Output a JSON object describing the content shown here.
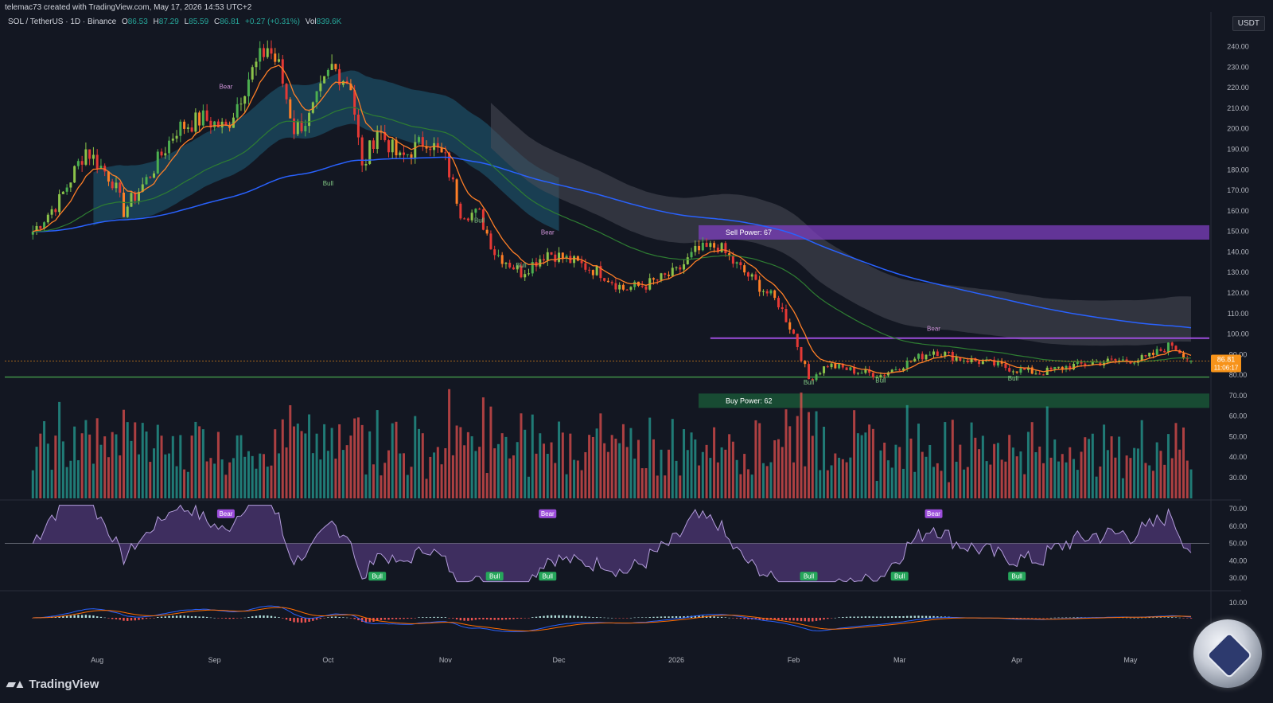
{
  "header": {
    "credit": "telemac73 created with TradingView.com, May 17, 2026 14:53 UTC+2"
  },
  "symbol": {
    "pair": "SOL / TetherUS · 1D · Binance",
    "o_label": "O",
    "o": "86.53",
    "h_label": "H",
    "h": "87.29",
    "l_label": "L",
    "l": "85.59",
    "c_label": "C",
    "c": "86.81",
    "change": "+0.27 (+0.31%)",
    "vol_label": "Vol",
    "vol": "839.6K"
  },
  "currency": "USDT",
  "price_axis": {
    "labels": [
      "240.00",
      "230.00",
      "220.00",
      "210.00",
      "200.00",
      "190.00",
      "180.00",
      "170.00",
      "160.00",
      "150.00",
      "140.00",
      "130.00",
      "120.00",
      "110.00",
      "100.00",
      "90.00",
      "80.00",
      "70.00",
      "60.00",
      "50.00",
      "40.00",
      "30.00"
    ],
    "current_price": "86.81",
    "countdown": "11:06:17"
  },
  "rsi_axis": {
    "labels": [
      "70.00",
      "60.00",
      "50.00",
      "40.00",
      "30.00"
    ]
  },
  "macd_axis": {
    "labels": [
      "10.00"
    ]
  },
  "time_axis": {
    "labels": [
      "Aug",
      "Sep",
      "Oct",
      "Nov",
      "Dec",
      "2026",
      "Feb",
      "Mar",
      "Apr",
      "May"
    ]
  },
  "zones": {
    "sell_power": "Sell Power: 67",
    "buy_power": "Buy Power: 62"
  },
  "divergence_labels": {
    "bear": "Bear",
    "bull": "Bull"
  },
  "branding": {
    "logo": "TradingView"
  },
  "colors": {
    "background": "#131722",
    "up": "#26a69a",
    "down": "#ef5350",
    "bright_up": "#4caf50",
    "bright_down": "#e53935",
    "orange_ma": "#ff7f27",
    "green_ma": "#2e7d32",
    "blue_ma": "#2962ff",
    "cloud_teal": "#1f5f7a",
    "cloud_gray": "#4a4d57",
    "sell_zone": "#7e3fbf",
    "buy_zone": "#1b5e3a",
    "price_badge": "#f7931a"
  },
  "chart_data": {
    "type": "candlestick",
    "title": "",
    "symbol": "SOL / TetherUS",
    "timeframe": "1D",
    "exchange": "Binance",
    "ylim": [
      20,
      250
    ],
    "last": {
      "open": 86.53,
      "high": 87.29,
      "low": 85.59,
      "close": 86.81,
      "change": 0.27,
      "change_pct": 0.31,
      "volume": "839.6K"
    },
    "close_path": {
      "months": [
        "Aug",
        "Sep",
        "Oct",
        "Nov",
        "Dec",
        "2026",
        "Feb",
        "Mar",
        "Apr",
        "May"
      ],
      "points": [
        [
          "2025-07-15",
          150
        ],
        [
          "2025-07-22",
          165
        ],
        [
          "2025-07-29",
          190
        ],
        [
          "2025-08-05",
          175
        ],
        [
          "2025-08-08",
          160
        ],
        [
          "2025-08-14",
          175
        ],
        [
          "2025-08-22",
          200
        ],
        [
          "2025-08-29",
          205
        ],
        [
          "2025-09-04",
          200
        ],
        [
          "2025-09-10",
          225
        ],
        [
          "2025-09-15",
          240
        ],
        [
          "2025-09-18",
          230
        ],
        [
          "2025-09-22",
          200
        ],
        [
          "2025-09-26",
          205
        ],
        [
          "2025-10-02",
          230
        ],
        [
          "2025-10-07",
          222
        ],
        [
          "2025-10-10",
          180
        ],
        [
          "2025-10-14",
          200
        ],
        [
          "2025-10-20",
          185
        ],
        [
          "2025-10-27",
          195
        ],
        [
          "2025-11-01",
          185
        ],
        [
          "2025-11-05",
          160
        ],
        [
          "2025-11-10",
          158
        ],
        [
          "2025-11-14",
          140
        ],
        [
          "2025-11-21",
          130
        ],
        [
          "2025-11-28",
          140
        ],
        [
          "2025-12-05",
          135
        ],
        [
          "2025-12-12",
          130
        ],
        [
          "2025-12-18",
          122
        ],
        [
          "2025-12-24",
          124
        ],
        [
          "2026-01-01",
          130
        ],
        [
          "2026-01-06",
          140
        ],
        [
          "2026-01-12",
          143
        ],
        [
          "2026-01-16",
          135
        ],
        [
          "2026-01-22",
          125
        ],
        [
          "2026-01-28",
          115
        ],
        [
          "2026-02-01",
          100
        ],
        [
          "2026-02-05",
          78
        ],
        [
          "2026-02-10",
          85
        ],
        [
          "2026-02-17",
          82
        ],
        [
          "2026-02-24",
          80
        ],
        [
          "2026-03-03",
          86
        ],
        [
          "2026-03-10",
          92
        ],
        [
          "2026-03-17",
          88
        ],
        [
          "2026-03-24",
          86
        ],
        [
          "2026-03-31",
          83
        ],
        [
          "2026-04-07",
          81
        ],
        [
          "2026-04-14",
          84
        ],
        [
          "2026-04-21",
          86
        ],
        [
          "2026-04-28",
          87
        ],
        [
          "2026-05-05",
          88
        ],
        [
          "2026-05-12",
          95
        ],
        [
          "2026-05-17",
          86.81
        ]
      ]
    },
    "overlays": [
      {
        "type": "zone",
        "label": "Sell Power: 67",
        "from": 146,
        "to": 153
      },
      {
        "type": "zone",
        "label": "Buy Power: 62",
        "from": 64,
        "to": 71
      }
    ],
    "sub_panes": [
      {
        "name": "RSI",
        "ylim": [
          25,
          75
        ],
        "levels": [
          30,
          40,
          50,
          60,
          70
        ]
      },
      {
        "name": "MACD",
        "levels": [
          10
        ]
      }
    ]
  }
}
